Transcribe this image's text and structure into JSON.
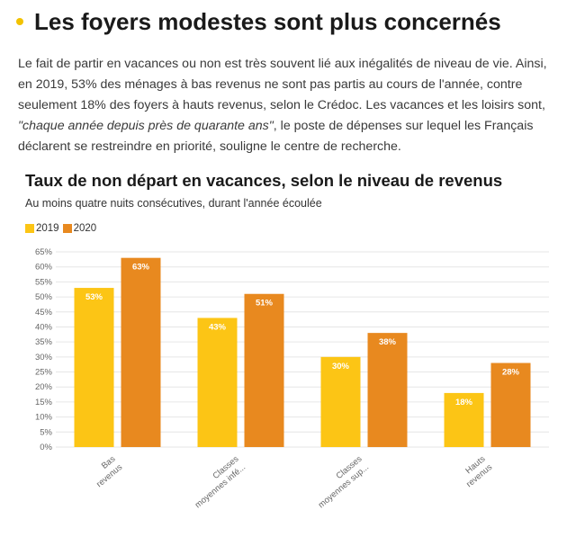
{
  "article": {
    "heading": "Les foyers modestes sont plus concernés",
    "paragraph_intro": "Le fait de partir en vacances ou non est très souvent lié aux inégalités de niveau de vie. Ainsi, en 2019, 53% des ménages à bas revenus ne sont pas partis au cours de l'année, contre seulement 18% des foyers à hauts revenus, selon le Crédoc. Les vacances et les loisirs sont, ",
    "quote": "\"chaque année depuis près de quarante ans\"",
    "paragraph_outro": ", le poste de dépenses sur lequel les Français déclarent se restreindre en priorité, souligne le centre de recherche."
  },
  "colors": {
    "bullet": "#f2c200",
    "series_2019": "#fcc515",
    "series_2020": "#e8891f"
  },
  "chart_data": {
    "type": "bar",
    "title": "Taux de non départ en vacances, selon le niveau de revenus",
    "subtitle": "Au moins quatre nuits consécutives, durant l'année écoulée",
    "categories": [
      "Bas revenus",
      "Classes moyennes infé...",
      "Classes moyennes sup...",
      "Hauts revenus"
    ],
    "series": [
      {
        "name": "2019",
        "values": [
          53,
          43,
          30,
          18
        ],
        "labels": [
          "53%",
          "43%",
          "30%",
          "18%"
        ]
      },
      {
        "name": "2020",
        "values": [
          63,
          51,
          38,
          28
        ],
        "labels": [
          "63%",
          "51%",
          "38%",
          "28%"
        ]
      }
    ],
    "yticks": [
      0,
      5,
      10,
      15,
      20,
      25,
      30,
      35,
      40,
      45,
      50,
      55,
      60,
      65
    ],
    "ytick_labels": [
      "0%",
      "5%",
      "10%",
      "15%",
      "20%",
      "25%",
      "30%",
      "35%",
      "40%",
      "45%",
      "50%",
      "55%",
      "60%",
      "65%"
    ],
    "ylim": [
      0,
      65
    ],
    "grid": true,
    "legend_position": "top-left"
  }
}
